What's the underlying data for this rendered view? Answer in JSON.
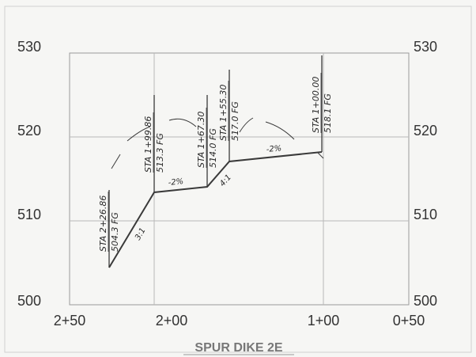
{
  "drawing": {
    "title": "SPUR DIKE 2E",
    "elev_labels": [
      "530",
      "520",
      "510",
      "500"
    ],
    "station_labels": [
      "2+50",
      "2+00",
      "1+00",
      "0+50"
    ],
    "stations": [
      {
        "line1": "STA 2+26.86",
        "line2": "504.3 FG"
      },
      {
        "line1": "STA 1+99.86",
        "line2": "513.3 FG"
      },
      {
        "line1": "STA 1+67.30",
        "line2": "514.0 FG"
      },
      {
        "line1": "STA 1+55.30",
        "line2": "517.0 FG"
      },
      {
        "line1": "STA 1+00.00",
        "line2": "518.1 FG"
      }
    ],
    "slopes": [
      "3:1",
      "-2%",
      "4:1",
      "-2%"
    ]
  }
}
